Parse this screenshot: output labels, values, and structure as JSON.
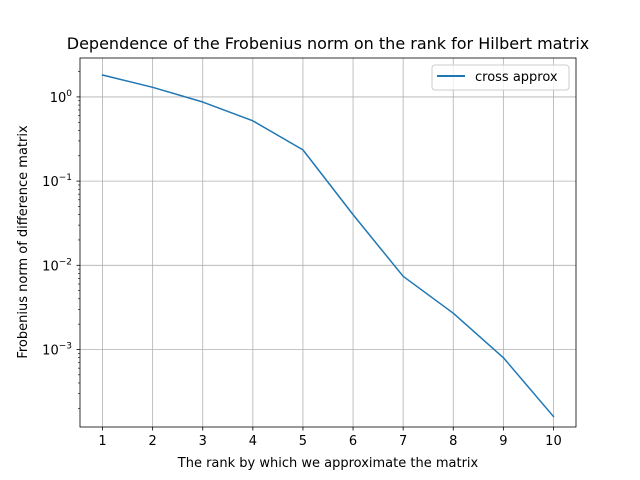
{
  "chart_data": {
    "type": "line",
    "title": "Dependence of the Frobenius norm on the rank for Hilbert matrix",
    "xlabel": "The rank by which we approximate the matrix",
    "ylabel": "Frobenius norm of difference matrix",
    "x": [
      1,
      2,
      3,
      4,
      5,
      6,
      7,
      8,
      9,
      10
    ],
    "x_ticks": [
      "1",
      "2",
      "3",
      "4",
      "5",
      "6",
      "7",
      "8",
      "9",
      "10"
    ],
    "y_scale": "log",
    "y_ticks": [
      {
        "value": 1,
        "mantissa": "10",
        "exponent": "0"
      },
      {
        "value": 0.1,
        "mantissa": "10",
        "exponent": "−1"
      },
      {
        "value": 0.01,
        "mantissa": "10",
        "exponent": "−2"
      },
      {
        "value": 0.001,
        "mantissa": "10",
        "exponent": "−3"
      }
    ],
    "xlim": [
      0.55,
      10.45
    ],
    "ylim": [
      0.00012,
      2.9
    ],
    "grid": true,
    "legend_position": "upper right",
    "series": [
      {
        "name": "cross approx",
        "color": "#1f77b4",
        "values": [
          1.82,
          1.3,
          0.87,
          0.52,
          0.235,
          0.04,
          0.0074,
          0.0027,
          0.0008,
          0.00016
        ]
      }
    ]
  }
}
